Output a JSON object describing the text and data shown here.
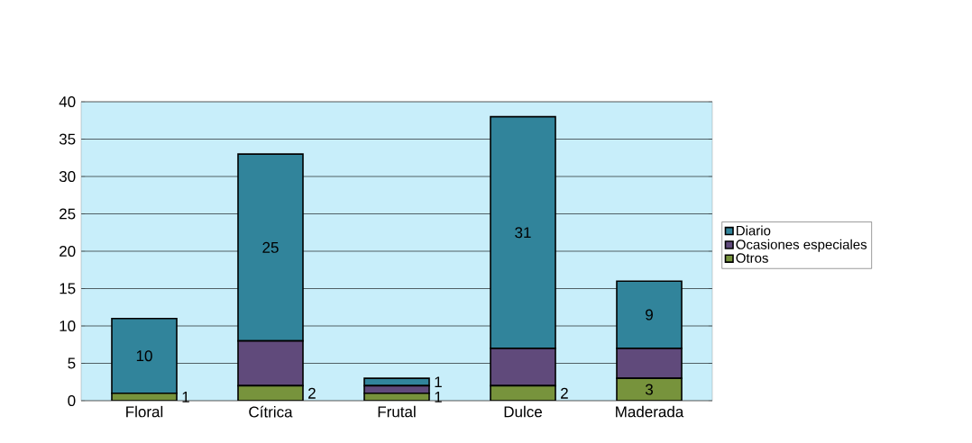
{
  "chart_data": {
    "type": "bar",
    "stacked": true,
    "categories": [
      "Floral",
      "Cítrica",
      "Frutal",
      "Dulce",
      "Maderada"
    ],
    "series": [
      {
        "name": "Otros",
        "color": "#77933c",
        "values": [
          1,
          2,
          1,
          2,
          3
        ],
        "value_labels": [
          "1",
          "2",
          "1",
          "2",
          "3"
        ]
      },
      {
        "name": "Ocasiones especiales",
        "color": "#604a7b",
        "values": [
          0,
          6,
          1,
          5,
          4
        ],
        "value_labels": [
          null,
          null,
          null,
          null,
          null
        ]
      },
      {
        "name": "Diario",
        "color": "#31849b",
        "values": [
          10,
          25,
          1,
          31,
          9
        ],
        "value_labels": [
          "10",
          "25",
          "1",
          "31",
          "9"
        ]
      }
    ],
    "ylim": [
      0,
      40
    ],
    "yticks": [
      0,
      5,
      10,
      15,
      20,
      25,
      30,
      35,
      40
    ],
    "grid": "y",
    "legend": "right"
  }
}
